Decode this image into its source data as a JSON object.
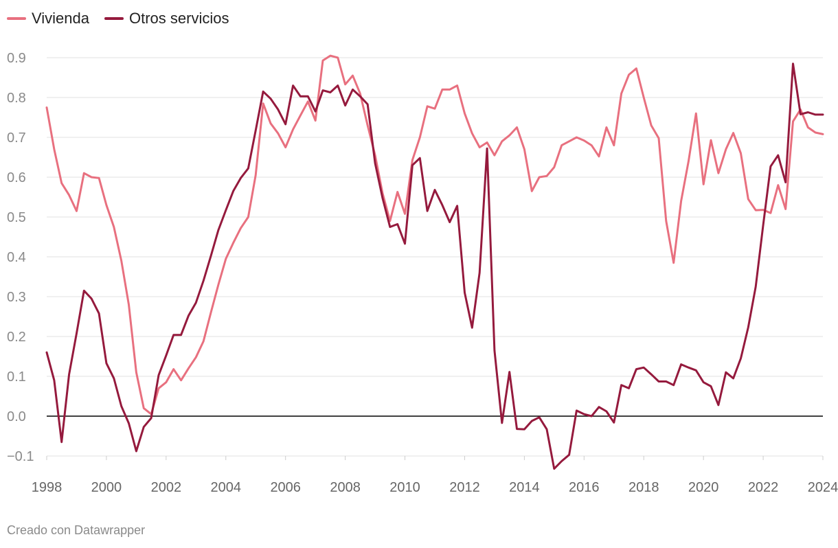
{
  "chart_data": {
    "type": "line",
    "title": "",
    "xlabel": "",
    "ylabel": "",
    "ylim": [
      -0.13,
      0.9
    ],
    "xlim": [
      1998,
      2024
    ],
    "y_ticks": [
      -0.1,
      0.0,
      0.1,
      0.2,
      0.3,
      0.4,
      0.5,
      0.6,
      0.7,
      0.8,
      0.9
    ],
    "y_tick_labels": [
      "−0.1",
      "0.0",
      "0.1",
      "0.2",
      "0.3",
      "0.4",
      "0.5",
      "0.6",
      "0.7",
      "0.8",
      "0.9"
    ],
    "x_ticks": [
      1998,
      2000,
      2002,
      2004,
      2006,
      2008,
      2010,
      2012,
      2014,
      2016,
      2018,
      2020,
      2022,
      2024
    ],
    "x_tick_labels": [
      "1998",
      "2000",
      "2002",
      "2004",
      "2006",
      "2008",
      "2010",
      "2012",
      "2014",
      "2016",
      "2018",
      "2020",
      "2022",
      "2024"
    ],
    "grid": true,
    "legend_position": "top-left",
    "series": [
      {
        "name": "Vivienda",
        "color": "#e8707f",
        "x": [
          1998.0,
          1998.25,
          1998.5,
          1998.75,
          1999.0,
          1999.25,
          1999.5,
          1999.75,
          2000.0,
          2000.25,
          2000.5,
          2000.75,
          2001.0,
          2001.25,
          2001.5,
          2001.75,
          2002.0,
          2002.25,
          2002.5,
          2002.75,
          2003.0,
          2003.25,
          2003.5,
          2003.75,
          2004.0,
          2004.25,
          2004.5,
          2004.75,
          2005.0,
          2005.25,
          2005.5,
          2005.75,
          2006.0,
          2006.25,
          2006.5,
          2006.75,
          2007.0,
          2007.25,
          2007.5,
          2007.75,
          2008.0,
          2008.25,
          2008.5,
          2008.75,
          2009.0,
          2009.25,
          2009.5,
          2009.75,
          2010.0,
          2010.25,
          2010.5,
          2010.75,
          2011.0,
          2011.25,
          2011.5,
          2011.75,
          2012.0,
          2012.25,
          2012.5,
          2012.75,
          2013.0,
          2013.25,
          2013.5,
          2013.75,
          2014.0,
          2014.25,
          2014.5,
          2014.75,
          2015.0,
          2015.25,
          2015.5,
          2015.75,
          2016.0,
          2016.25,
          2016.5,
          2016.75,
          2017.0,
          2017.25,
          2017.5,
          2017.75,
          2018.0,
          2018.25,
          2018.5,
          2018.75,
          2019.0,
          2019.25,
          2019.5,
          2019.75,
          2020.0,
          2020.25,
          2020.5,
          2020.75,
          2021.0,
          2021.25,
          2021.5,
          2021.75,
          2022.0,
          2022.25,
          2022.5,
          2022.75,
          2023.0,
          2023.25,
          2023.5,
          2023.75,
          2024.0
        ],
        "y": [
          0.775,
          0.67,
          0.585,
          0.555,
          0.515,
          0.61,
          0.6,
          0.598,
          0.53,
          0.475,
          0.39,
          0.28,
          0.11,
          0.02,
          0.005,
          0.07,
          0.085,
          0.118,
          0.09,
          0.12,
          0.148,
          0.188,
          0.26,
          0.33,
          0.395,
          0.435,
          0.472,
          0.5,
          0.605,
          0.785,
          0.735,
          0.71,
          0.675,
          0.72,
          0.755,
          0.79,
          0.742,
          0.893,
          0.905,
          0.9,
          0.833,
          0.855,
          0.81,
          0.73,
          0.655,
          0.56,
          0.49,
          0.563,
          0.508,
          0.643,
          0.7,
          0.778,
          0.772,
          0.82,
          0.82,
          0.83,
          0.76,
          0.71,
          0.675,
          0.687,
          0.655,
          0.69,
          0.705,
          0.725,
          0.67,
          0.565,
          0.6,
          0.603,
          0.625,
          0.68,
          0.69,
          0.7,
          0.692,
          0.68,
          0.652,
          0.725,
          0.68,
          0.81,
          0.857,
          0.873,
          0.8,
          0.73,
          0.698,
          0.49,
          0.385,
          0.54,
          0.64,
          0.76,
          0.582,
          0.693,
          0.61,
          0.67,
          0.711,
          0.66,
          0.545,
          0.517,
          0.518,
          0.51,
          0.58,
          0.52,
          0.74,
          0.77,
          0.725,
          0.712,
          0.708
        ]
      },
      {
        "name": "Otros servicios",
        "color": "#951a3d",
        "x": [
          1998.0,
          1998.25,
          1998.5,
          1998.75,
          1999.0,
          1999.25,
          1999.5,
          1999.75,
          2000.0,
          2000.25,
          2000.5,
          2000.75,
          2001.0,
          2001.25,
          2001.5,
          2001.75,
          2002.0,
          2002.25,
          2002.5,
          2002.75,
          2003.0,
          2003.25,
          2003.5,
          2003.75,
          2004.0,
          2004.25,
          2004.5,
          2004.75,
          2005.0,
          2005.25,
          2005.5,
          2005.75,
          2006.0,
          2006.25,
          2006.5,
          2006.75,
          2007.0,
          2007.25,
          2007.5,
          2007.75,
          2008.0,
          2008.25,
          2008.5,
          2008.75,
          2009.0,
          2009.25,
          2009.5,
          2009.75,
          2010.0,
          2010.25,
          2010.5,
          2010.75,
          2011.0,
          2011.25,
          2011.5,
          2011.75,
          2012.0,
          2012.25,
          2012.5,
          2012.75,
          2013.0,
          2013.25,
          2013.5,
          2013.75,
          2014.0,
          2014.25,
          2014.5,
          2014.75,
          2015.0,
          2015.25,
          2015.5,
          2015.75,
          2016.0,
          2016.25,
          2016.5,
          2016.75,
          2017.0,
          2017.25,
          2017.5,
          2017.75,
          2018.0,
          2018.25,
          2018.5,
          2018.75,
          2019.0,
          2019.25,
          2019.5,
          2019.75,
          2020.0,
          2020.25,
          2020.5,
          2020.75,
          2021.0,
          2021.25,
          2021.5,
          2021.75,
          2022.0,
          2022.25,
          2022.5,
          2022.75,
          2023.0,
          2023.25,
          2023.5,
          2023.75,
          2024.0
        ],
        "y": [
          0.16,
          0.09,
          -0.065,
          0.105,
          0.208,
          0.315,
          0.295,
          0.258,
          0.133,
          0.095,
          0.025,
          -0.018,
          -0.088,
          -0.027,
          -0.005,
          0.103,
          0.152,
          0.204,
          0.204,
          0.252,
          0.285,
          0.34,
          0.402,
          0.467,
          0.517,
          0.565,
          0.598,
          0.622,
          0.717,
          0.815,
          0.797,
          0.77,
          0.733,
          0.83,
          0.803,
          0.803,
          0.765,
          0.818,
          0.813,
          0.83,
          0.78,
          0.82,
          0.803,
          0.783,
          0.635,
          0.548,
          0.475,
          0.482,
          0.433,
          0.63,
          0.648,
          0.515,
          0.568,
          0.53,
          0.487,
          0.528,
          0.31,
          0.222,
          0.36,
          0.672,
          0.165,
          -0.017,
          0.111,
          -0.032,
          -0.033,
          -0.012,
          -0.003,
          -0.033,
          -0.132,
          -0.113,
          -0.097,
          0.014,
          0.005,
          0.0,
          0.023,
          0.012,
          -0.016,
          0.078,
          0.07,
          0.118,
          0.122,
          0.105,
          0.087,
          0.087,
          0.078,
          0.13,
          0.122,
          0.115,
          0.085,
          0.075,
          0.028,
          0.11,
          0.095,
          0.145,
          0.223,
          0.325,
          0.48,
          0.627,
          0.655,
          0.587,
          0.885,
          0.758,
          0.763,
          0.757,
          0.757
        ]
      }
    ]
  },
  "footer": {
    "credit": "Creado con Datawrapper"
  }
}
